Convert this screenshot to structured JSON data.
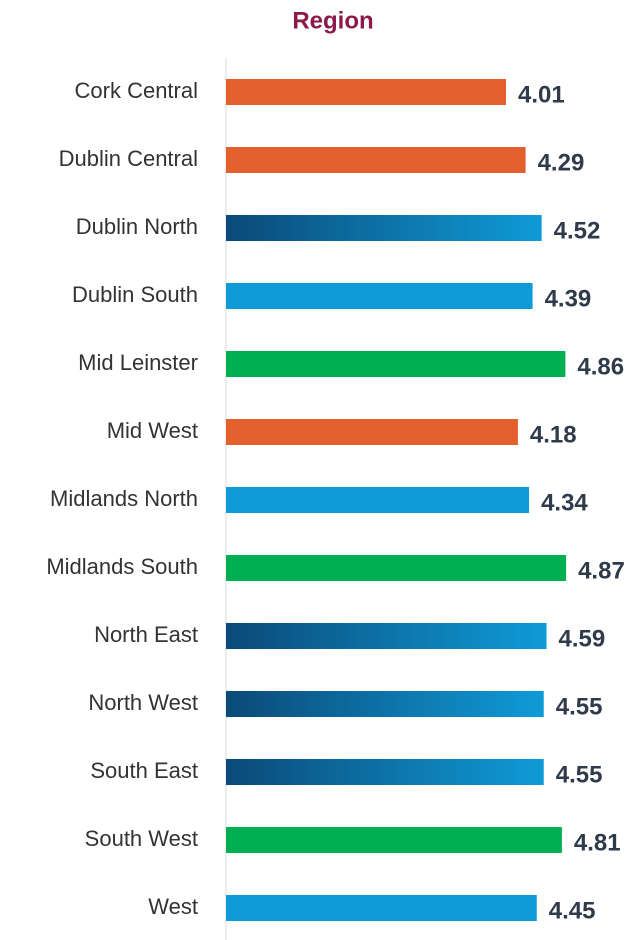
{
  "chart_data": {
    "type": "hbar",
    "title": "Region",
    "categories": [
      "Cork Central",
      "Dublin Central",
      "Dublin North",
      "Dublin South",
      "Mid Leinster",
      "Mid West",
      "Midlands North",
      "Midlands South",
      "North East",
      "North West",
      "South East",
      "South West",
      "West"
    ],
    "values": [
      4.01,
      4.29,
      4.52,
      4.39,
      4.86,
      4.18,
      4.34,
      4.87,
      4.59,
      4.55,
      4.55,
      4.81,
      4.45
    ],
    "colors": [
      "#e35f2b",
      "#e35f2b",
      [
        "#0b4a78",
        "#0f9bd7"
      ],
      "#0f9bd7",
      "#00b050",
      "#e35f2b",
      "#0f9bd7",
      "#00b050",
      [
        "#0b4a78",
        "#0f9bd7"
      ],
      [
        "#0b4a78",
        "#0f9bd7"
      ],
      [
        "#0b4a78",
        "#0f9bd7"
      ],
      "#00b050",
      "#0f9bd7"
    ],
    "xlim": [
      0,
      6
    ]
  }
}
